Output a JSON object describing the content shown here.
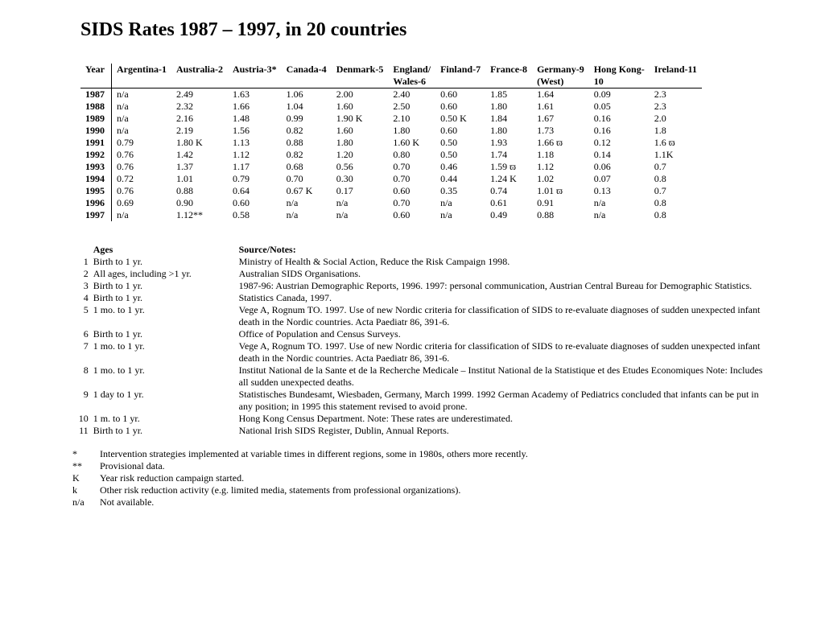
{
  "title": "SIDS Rates 1987 – 1997, in 20 countries",
  "columns": [
    {
      "l1": "Year",
      "l2": ""
    },
    {
      "l1": "Argentina-1",
      "l2": ""
    },
    {
      "l1": "Australia-2",
      "l2": ""
    },
    {
      "l1": "Austria-3*",
      "l2": ""
    },
    {
      "l1": "Canada-4",
      "l2": ""
    },
    {
      "l1": "Denmark-5",
      "l2": ""
    },
    {
      "l1": "England/",
      "l2": "Wales-6"
    },
    {
      "l1": "Finland-7",
      "l2": ""
    },
    {
      "l1": "France-8",
      "l2": ""
    },
    {
      "l1": "Germany-9",
      "l2": "(West)"
    },
    {
      "l1": "Hong Kong-",
      "l2": "10"
    },
    {
      "l1": "Ireland-11",
      "l2": ""
    }
  ],
  "rows": [
    {
      "year": "1987",
      "c": [
        "n/a",
        "2.49",
        "1.63",
        "1.06",
        "2.00",
        "2.40",
        "0.60",
        "1.85",
        "1.64",
        "0.09",
        "2.3"
      ]
    },
    {
      "year": "1988",
      "c": [
        "n/a",
        "2.32",
        "1.66",
        "1.04",
        "1.60",
        "2.50",
        "0.60",
        "1.80",
        "1.61",
        "0.05",
        "2.3"
      ]
    },
    {
      "year": "1989",
      "c": [
        "n/a",
        "2.16",
        "1.48",
        "0.99",
        "1.90 K",
        "2.10",
        "0.50 K",
        "1.84",
        "1.67",
        "0.16",
        "2.0"
      ]
    },
    {
      "year": "1990",
      "c": [
        "n/a",
        "2.19",
        "1.56",
        "0.82",
        "1.60",
        "1.80",
        "0.60",
        "1.80",
        "1.73",
        "0.16",
        "1.8"
      ]
    },
    {
      "year": "1991",
      "c": [
        "0.79",
        "1.80 K",
        "1.13",
        "0.88",
        "1.80",
        "1.60 K",
        "0.50",
        "1.93",
        "1.66 ϖ",
        "0.12",
        "1.6 ϖ"
      ]
    },
    {
      "year": "1992",
      "c": [
        "0.76",
        "1.42",
        "1.12",
        "0.82",
        "1.20",
        "0.80",
        "0.50",
        "1.74",
        "1.18",
        "0.14",
        "1.1K"
      ]
    },
    {
      "year": "1993",
      "c": [
        "0.76",
        "1.37",
        "1.17",
        "0.68",
        "0.56",
        "0.70",
        "0.46",
        "1.59 ϖ",
        "1.12",
        "0.06",
        "0.7"
      ]
    },
    {
      "year": "1994",
      "c": [
        "0.72",
        "1.01",
        "0.79",
        "0.70",
        "0.30",
        "0.70",
        "0.44",
        "1.24 K",
        "1.02",
        "0.07",
        "0.8"
      ]
    },
    {
      "year": "1995",
      "c": [
        "0.76",
        "0.88",
        "0.64",
        "0.67 K",
        "0.17",
        "0.60",
        "0.35",
        "0.74",
        "1.01 ϖ",
        "0.13",
        "0.7"
      ]
    },
    {
      "year": "1996",
      "c": [
        "0.69",
        "0.90",
        "0.60",
        "n/a",
        "n/a",
        "0.70",
        "n/a",
        "0.61",
        "0.91",
        "n/a",
        "0.8"
      ]
    },
    {
      "year": "1997",
      "c": [
        "n/a",
        "1.12**",
        "0.58",
        "n/a",
        "n/a",
        "0.60",
        "n/a",
        "0.49",
        "0.88",
        "n/a",
        "0.8"
      ]
    }
  ],
  "notes_header": {
    "ages": "Ages",
    "src": "Source/Notes:"
  },
  "notes": [
    {
      "n": "1",
      "ages": "Birth to 1 yr.",
      "src": "Ministry of Health & Social Action, Reduce the Risk Campaign 1998."
    },
    {
      "n": "2",
      "ages": "All ages, including >1 yr.",
      "src": "Australian SIDS Organisations."
    },
    {
      "n": "3",
      "ages": "Birth to 1 yr.",
      "src": "1987-96: Austrian Demographic Reports, 1996. 1997: personal communication, Austrian Central Bureau for Demographic Statistics."
    },
    {
      "n": "4",
      "ages": "Birth to 1 yr.",
      "src": "Statistics Canada, 1997."
    },
    {
      "n": "5",
      "ages": "1 mo. to 1 yr.",
      "src": "Vege A, Rognum TO. 1997. Use of new Nordic criteria for classification of SIDS to re-evaluate diagnoses of sudden unexpected infant death in the Nordic countries. Acta Paediatr 86, 391-6."
    },
    {
      "n": "6",
      "ages": "Birth to 1 yr.",
      "src": "Office of Population and Census Surveys."
    },
    {
      "n": "7",
      "ages": "1 mo. to 1 yr.",
      "src": "Vege A, Rognum TO. 1997. Use of new Nordic criteria for classification of SIDS to re-evaluate diagnoses of sudden unexpected infant death in the Nordic countries. Acta Paediatr 86, 391-6."
    },
    {
      "n": "8",
      "ages": "1 mo. to 1 yr.",
      "src": "Institut National de la Sante et de la Recherche Medicale – Institut National de la Statistique et des Etudes Economiques  Note: Includes all sudden unexpected deaths."
    },
    {
      "n": "9",
      "ages": "1 day to 1 yr.",
      "src": "Statistisches Bundesamt, Wiesbaden, Germany, March 1999.  1992 German Academy of Pediatrics concluded that infants can be put in any position; in 1995 this statement revised to avoid prone."
    },
    {
      "n": "10",
      "ages": "1 m. to 1 yr.",
      "src": "Hong Kong Census Department.  Note: These rates are underestimated."
    },
    {
      "n": "11",
      "ages": "Birth to 1 yr.",
      "src": "National Irish SIDS Register, Dublin, Annual Reports."
    }
  ],
  "legend": [
    {
      "sym": "*",
      "txt": "Intervention strategies implemented at variable times in different regions, some in 1980s, others more recently."
    },
    {
      "sym": "**",
      "txt": "Provisional data."
    },
    {
      "sym": "K",
      "txt": "Year risk reduction campaign started."
    },
    {
      "sym": "k",
      "txt": "Other risk reduction activity (e.g. limited media, statements from professional organizations)."
    },
    {
      "sym": "n/a",
      "txt": "Not available."
    }
  ]
}
